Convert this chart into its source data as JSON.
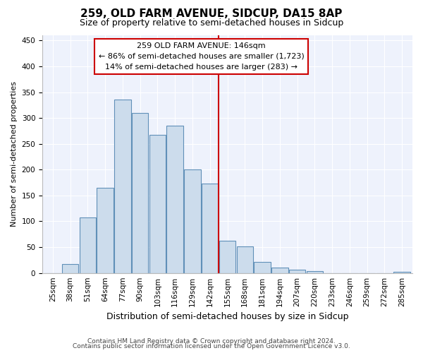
{
  "title1": "259, OLD FARM AVENUE, SIDCUP, DA15 8AP",
  "title2": "Size of property relative to semi-detached houses in Sidcup",
  "xlabel": "Distribution of semi-detached houses by size in Sidcup",
  "ylabel": "Number of semi-detached properties",
  "footnote1": "Contains HM Land Registry data © Crown copyright and database right 2024.",
  "footnote2": "Contains public sector information licensed under the Open Government Licence v3.0.",
  "bar_labels": [
    "25sqm",
    "38sqm",
    "51sqm",
    "64sqm",
    "77sqm",
    "90sqm",
    "103sqm",
    "116sqm",
    "129sqm",
    "142sqm",
    "155sqm",
    "168sqm",
    "181sqm",
    "194sqm",
    "207sqm",
    "220sqm",
    "233sqm",
    "246sqm",
    "259sqm",
    "272sqm",
    "285sqm"
  ],
  "bar_values": [
    0,
    18,
    108,
    165,
    335,
    310,
    268,
    285,
    200,
    173,
    63,
    52,
    22,
    10,
    7,
    3,
    0,
    0,
    0,
    0,
    2
  ],
  "bar_color": "#ccdcec",
  "bar_edge_color": "#6090b8",
  "bg_color": "#eef2fc",
  "grid_color": "#ffffff",
  "vline_x_index": 9,
  "vline_color": "#cc0000",
  "annotation_text_line1": "259 OLD FARM AVENUE: 146sqm",
  "annotation_text_line2": "← 86% of semi-detached houses are smaller (1,723)",
  "annotation_text_line3": "14% of semi-detached houses are larger (283) →",
  "ylim": [
    0,
    460
  ],
  "yticks": [
    0,
    50,
    100,
    150,
    200,
    250,
    300,
    350,
    400,
    450
  ],
  "title1_fontsize": 11,
  "title2_fontsize": 9,
  "xlabel_fontsize": 9,
  "ylabel_fontsize": 8,
  "tick_fontsize": 7.5,
  "annot_fontsize": 8,
  "footnote_fontsize": 6.5
}
